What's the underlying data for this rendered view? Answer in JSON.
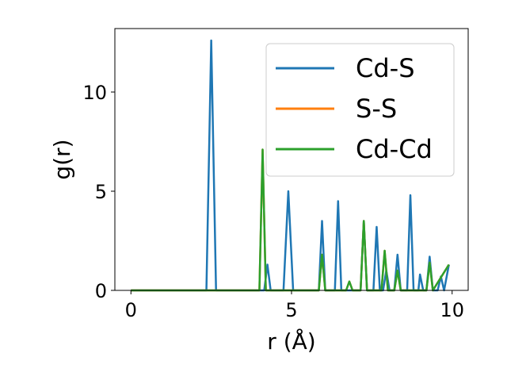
{
  "chart_data": {
    "type": "line",
    "title": "",
    "xlabel": "r (Å)",
    "ylabel": "g(r)",
    "xlim": [
      -0.5,
      10.5
    ],
    "ylim": [
      0,
      13.2
    ],
    "xticks": [
      0,
      5,
      10
    ],
    "xtick_labels": [
      "0",
      "5",
      "10"
    ],
    "yticks": [
      0,
      5,
      10
    ],
    "ytick_labels": [
      "0",
      "5",
      "10"
    ],
    "grid": false,
    "legend_position": "top-right",
    "series": [
      {
        "name": "Cd-S",
        "color": "#1f77b4",
        "x": [
          0,
          2.35,
          2.5,
          2.65,
          4.15,
          4.25,
          4.35,
          4.75,
          4.9,
          5.05,
          5.85,
          5.95,
          6.05,
          6.35,
          6.45,
          6.55,
          7.15,
          7.25,
          7.35,
          7.55,
          7.65,
          7.75,
          7.85,
          7.95,
          8.05,
          8.2,
          8.3,
          8.4,
          8.6,
          8.7,
          8.8,
          8.95,
          9.0,
          9.1,
          9.2,
          9.3,
          9.4,
          9.55,
          9.65,
          9.75,
          9.9
        ],
        "y": [
          0,
          0,
          12.6,
          0,
          0,
          1.3,
          0,
          0,
          5.0,
          0,
          0,
          3.5,
          0,
          0,
          4.5,
          0,
          0,
          3.5,
          0,
          0,
          3.2,
          0,
          0,
          1.0,
          0,
          0,
          1.8,
          0,
          0,
          4.8,
          0,
          0,
          0.8,
          0,
          0,
          1.7,
          0,
          0,
          0.7,
          0,
          1.3
        ]
      },
      {
        "name": "S-S",
        "color": "#ff7f0e",
        "x": [
          0,
          4.0,
          4.1,
          4.2,
          5.85,
          5.95,
          6.05,
          6.7,
          6.8,
          6.9,
          7.15,
          7.25,
          7.35,
          7.8,
          7.9,
          8.0,
          8.2,
          8.3,
          8.4,
          9.2,
          9.3,
          9.4,
          9.9
        ],
        "y": [
          0,
          0,
          7.1,
          0,
          0,
          1.8,
          0,
          0,
          0.45,
          0,
          0,
          3.5,
          0,
          0,
          2.0,
          0,
          0,
          1.0,
          0,
          0,
          1.4,
          0,
          1.3
        ]
      },
      {
        "name": "Cd-Cd",
        "color": "#2ca02c",
        "x": [
          0,
          4.0,
          4.1,
          4.2,
          5.85,
          5.95,
          6.05,
          6.7,
          6.8,
          6.9,
          7.15,
          7.25,
          7.35,
          7.8,
          7.9,
          8.0,
          8.2,
          8.3,
          8.4,
          9.2,
          9.3,
          9.4,
          9.9
        ],
        "y": [
          0,
          0,
          7.1,
          0,
          0,
          1.8,
          0,
          0,
          0.45,
          0,
          0,
          3.5,
          0,
          0,
          2.0,
          0,
          0,
          1.0,
          0,
          0,
          1.4,
          0,
          1.3
        ]
      }
    ]
  }
}
